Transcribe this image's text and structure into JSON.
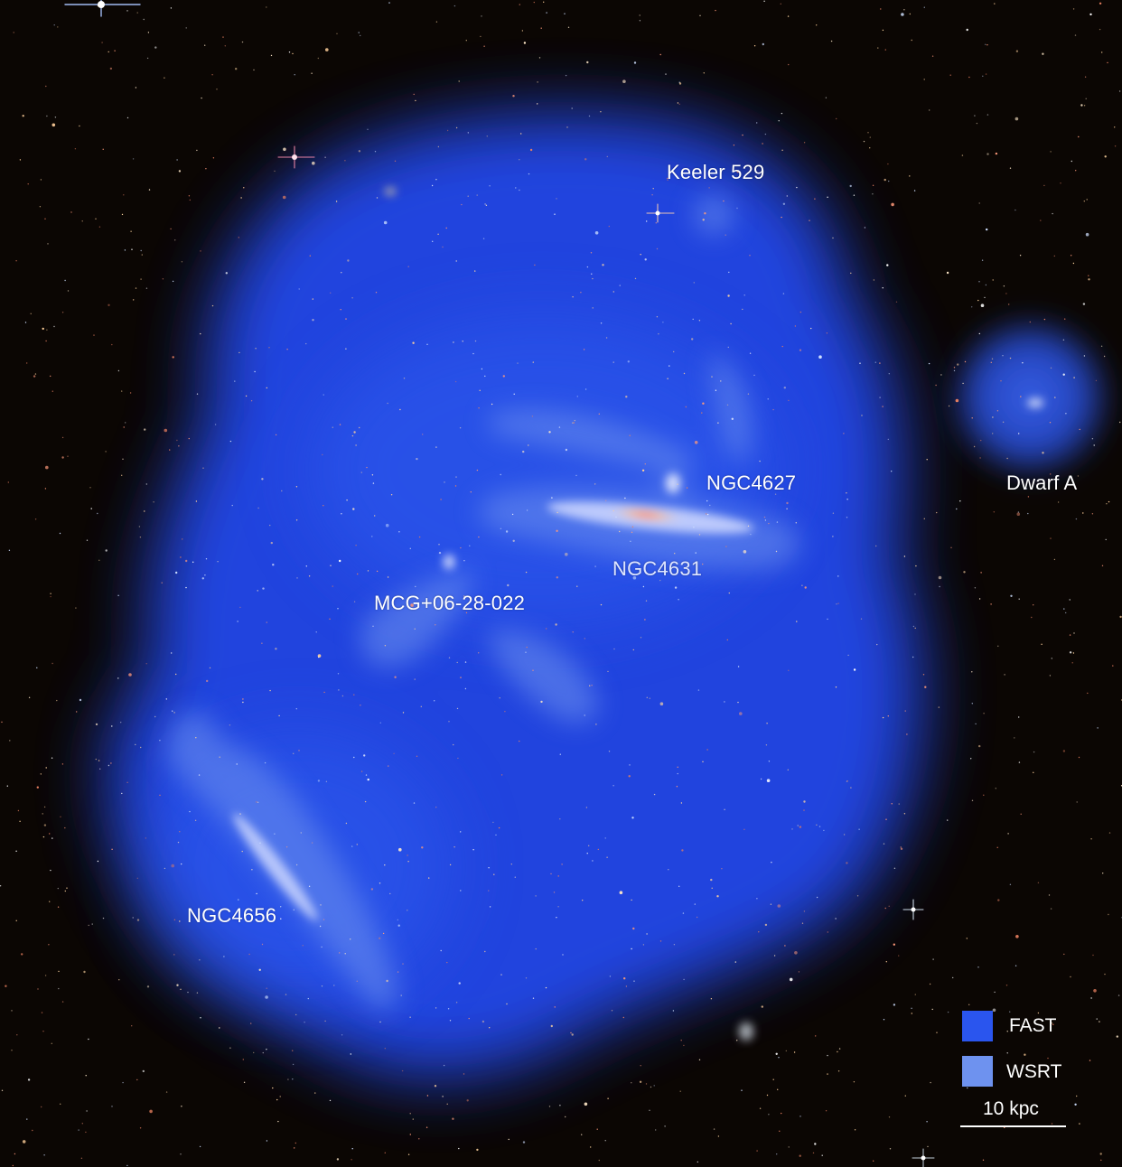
{
  "labels": {
    "keeler": "Keeler 529",
    "ngc4627": "NGC4627",
    "dwarf_a": "Dwarf A",
    "ngc4631": "NGC4631",
    "mcg": "MCG+06-28-022",
    "ngc4656": "NGC4656"
  },
  "legend": {
    "items": [
      {
        "label": "FAST",
        "color": "#2a55ee"
      },
      {
        "label": "WSRT",
        "color": "#6e92ef"
      }
    ],
    "scale_label": "10 kpc"
  },
  "colors": {
    "background": "#0b0603",
    "fast_emission": "#2a55ee",
    "wsrt_emission": "#6e92ef",
    "galaxy_core": "#ff8a5c"
  }
}
